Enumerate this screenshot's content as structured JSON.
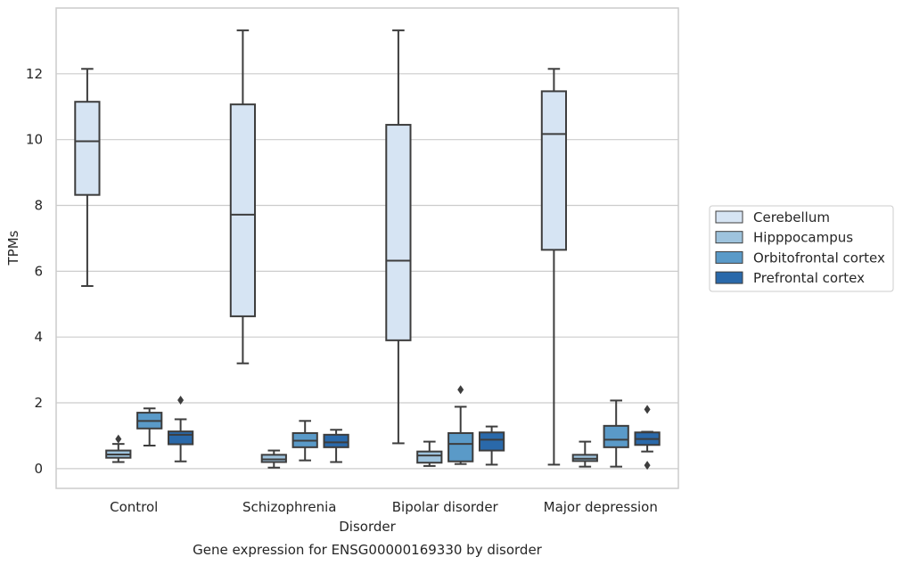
{
  "chart_data": {
    "type": "box",
    "title": "Gene expression for ENSG00000169330 by disorder",
    "xlabel": "Disorder",
    "ylabel": "TPMs",
    "ylim": [
      -0.6,
      14.0
    ],
    "yticks": [
      0,
      2,
      4,
      6,
      8,
      10,
      12
    ],
    "grid": "horizontal",
    "legend_position": "right",
    "categories": [
      "Control",
      "Schizophrenia",
      "Bipolar disorder",
      "Major depression"
    ],
    "series": [
      {
        "name": "Cerebellum",
        "color": "#d6e4f3",
        "boxes": [
          {
            "whisker_low": 5.55,
            "q1": 8.32,
            "median": 9.95,
            "q3": 11.15,
            "whisker_high": 12.15,
            "outliers": []
          },
          {
            "whisker_low": 3.2,
            "q1": 4.63,
            "median": 7.72,
            "q3": 11.07,
            "whisker_high": 13.32,
            "outliers": []
          },
          {
            "whisker_low": 0.77,
            "q1": 3.9,
            "median": 6.32,
            "q3": 10.45,
            "whisker_high": 13.32,
            "outliers": []
          },
          {
            "whisker_low": 0.12,
            "q1": 6.65,
            "median": 10.17,
            "q3": 11.47,
            "whisker_high": 12.15,
            "outliers": []
          }
        ]
      },
      {
        "name": "Hipppocampus",
        "color": "#9ec3dd",
        "boxes": [
          {
            "whisker_low": 0.2,
            "q1": 0.33,
            "median": 0.43,
            "q3": 0.55,
            "whisker_high": 0.75,
            "outliers": [
              0.9
            ]
          },
          {
            "whisker_low": 0.03,
            "q1": 0.2,
            "median": 0.28,
            "q3": 0.42,
            "whisker_high": 0.55,
            "outliers": []
          },
          {
            "whisker_low": 0.08,
            "q1": 0.18,
            "median": 0.4,
            "q3": 0.52,
            "whisker_high": 0.82,
            "outliers": []
          },
          {
            "whisker_low": 0.06,
            "q1": 0.23,
            "median": 0.3,
            "q3": 0.42,
            "whisker_high": 0.82,
            "outliers": []
          }
        ]
      },
      {
        "name": "Orbitofrontal cortex",
        "color": "#5a9ac8",
        "boxes": [
          {
            "whisker_low": 0.7,
            "q1": 1.22,
            "median": 1.45,
            "q3": 1.7,
            "whisker_high": 1.83,
            "outliers": []
          },
          {
            "whisker_low": 0.25,
            "q1": 0.65,
            "median": 0.85,
            "q3": 1.08,
            "whisker_high": 1.45,
            "outliers": []
          },
          {
            "whisker_low": 0.14,
            "q1": 0.22,
            "median": 0.75,
            "q3": 1.08,
            "whisker_high": 1.88,
            "outliers": [
              2.4
            ]
          },
          {
            "whisker_low": 0.06,
            "q1": 0.65,
            "median": 0.88,
            "q3": 1.3,
            "whisker_high": 2.07,
            "outliers": []
          }
        ]
      },
      {
        "name": "Prefrontal cortex",
        "color": "#2a69aa",
        "boxes": [
          {
            "whisker_low": 0.22,
            "q1": 0.74,
            "median": 1.03,
            "q3": 1.13,
            "whisker_high": 1.5,
            "outliers": [
              2.08
            ]
          },
          {
            "whisker_low": 0.2,
            "q1": 0.65,
            "median": 0.8,
            "q3": 1.03,
            "whisker_high": 1.18,
            "outliers": []
          },
          {
            "whisker_low": 0.12,
            "q1": 0.55,
            "median": 0.88,
            "q3": 1.1,
            "whisker_high": 1.28,
            "outliers": []
          },
          {
            "whisker_low": 0.52,
            "q1": 0.72,
            "median": 0.9,
            "q3": 1.1,
            "whisker_high": 1.12,
            "outliers": [
              1.8,
              0.1
            ]
          }
        ]
      }
    ]
  }
}
